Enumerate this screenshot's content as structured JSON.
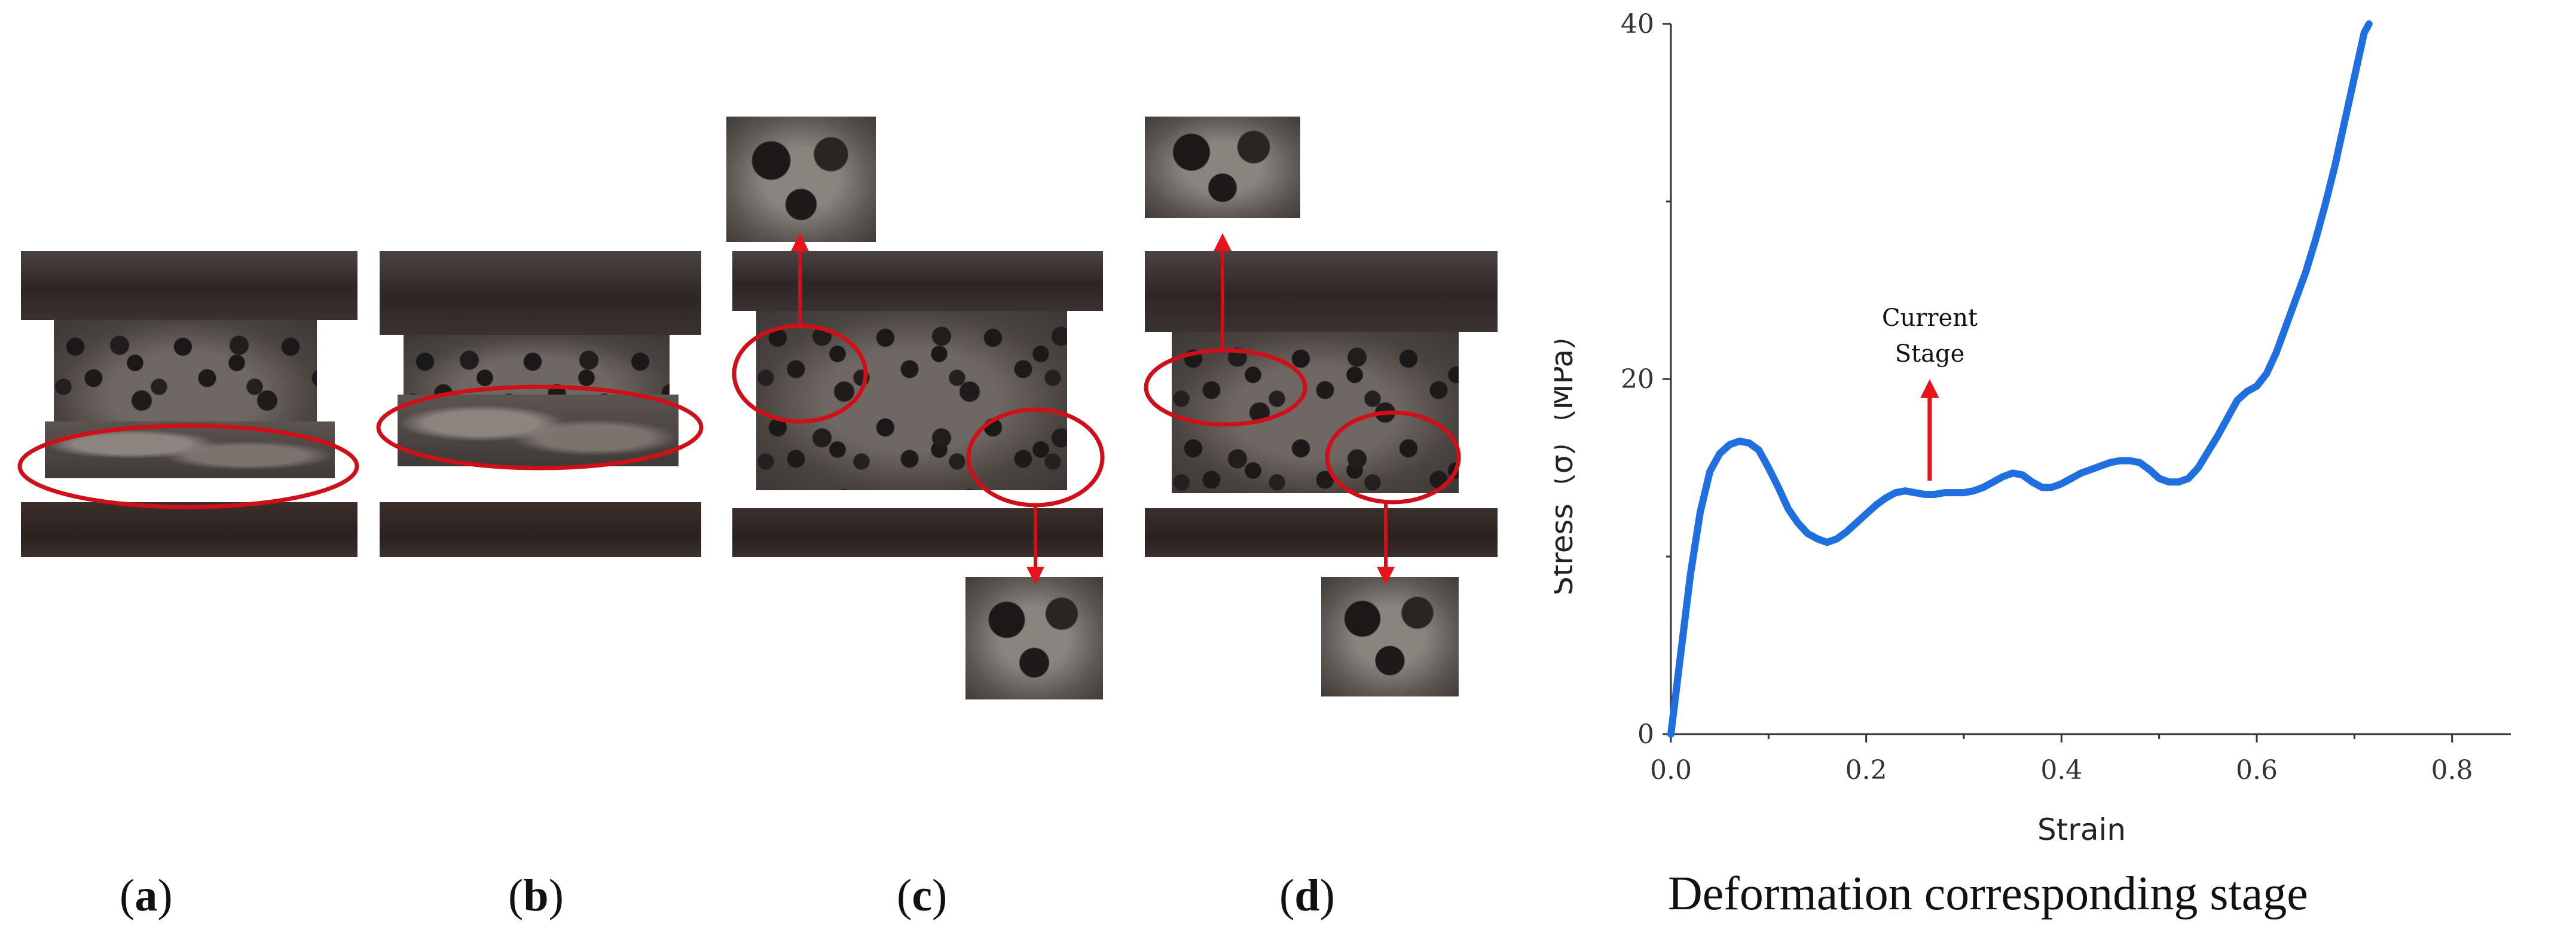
{
  "panels": [
    {
      "open": "(",
      "letter": "a",
      "close": ")"
    },
    {
      "open": "(",
      "letter": "b",
      "close": ")"
    },
    {
      "open": "(",
      "letter": "c",
      "close": ")"
    },
    {
      "open": "(",
      "letter": "d",
      "close": ")"
    }
  ],
  "caption": "Deformation corresponding stage",
  "annotation": {
    "line1": "Current",
    "line2": "Stage",
    "at_x": 0.265
  },
  "colors": {
    "curve": "#1f6fe0",
    "marker": "#e8141c",
    "axis": "#333333"
  },
  "chart_data": {
    "type": "line",
    "xlabel": "Strain",
    "ylabel": "Stress（σ）（MPa）",
    "xlim": [
      0,
      0.9
    ],
    "ylim": [
      0,
      40
    ],
    "xticks": [
      0.0,
      0.2,
      0.4,
      0.6,
      0.8
    ],
    "xtick_labels": [
      "0.0",
      "0.2",
      "0.4",
      "0.6",
      "0.8"
    ],
    "yticks": [
      0,
      20,
      40
    ],
    "ytick_labels": [
      "0",
      "20",
      "40"
    ],
    "grid": false,
    "series": [
      {
        "x": [
          0.0,
          0.01,
          0.02,
          0.03,
          0.04,
          0.05,
          0.06,
          0.07,
          0.08,
          0.09,
          0.1,
          0.11,
          0.12,
          0.13,
          0.14,
          0.15,
          0.16,
          0.17,
          0.18,
          0.19,
          0.2,
          0.21,
          0.22,
          0.23,
          0.24,
          0.25,
          0.26,
          0.27,
          0.28,
          0.29,
          0.3,
          0.31,
          0.32,
          0.33,
          0.34,
          0.35,
          0.36,
          0.37,
          0.38,
          0.39,
          0.4,
          0.41,
          0.42,
          0.43,
          0.44,
          0.45,
          0.46,
          0.47,
          0.48,
          0.49,
          0.5,
          0.51,
          0.52,
          0.53,
          0.54,
          0.55,
          0.56,
          0.57,
          0.58,
          0.59,
          0.6,
          0.61,
          0.62,
          0.63,
          0.64,
          0.65,
          0.66,
          0.67,
          0.68,
          0.69,
          0.7,
          0.71,
          0.715
        ],
        "y": [
          0.0,
          4.5,
          9.0,
          12.5,
          14.8,
          15.8,
          16.3,
          16.5,
          16.4,
          16.0,
          15.0,
          13.9,
          12.7,
          11.9,
          11.3,
          11.0,
          10.8,
          11.0,
          11.4,
          11.9,
          12.4,
          12.9,
          13.3,
          13.6,
          13.7,
          13.6,
          13.5,
          13.5,
          13.6,
          13.6,
          13.6,
          13.7,
          13.9,
          14.2,
          14.5,
          14.7,
          14.6,
          14.2,
          13.9,
          13.9,
          14.1,
          14.4,
          14.7,
          14.9,
          15.1,
          15.3,
          15.4,
          15.4,
          15.3,
          14.9,
          14.4,
          14.2,
          14.2,
          14.4,
          15.0,
          15.9,
          16.8,
          17.8,
          18.8,
          19.3,
          19.6,
          20.3,
          21.5,
          23.0,
          24.5,
          26.0,
          27.8,
          29.8,
          32.0,
          34.5,
          37.0,
          39.5,
          40.0
        ]
      }
    ]
  }
}
